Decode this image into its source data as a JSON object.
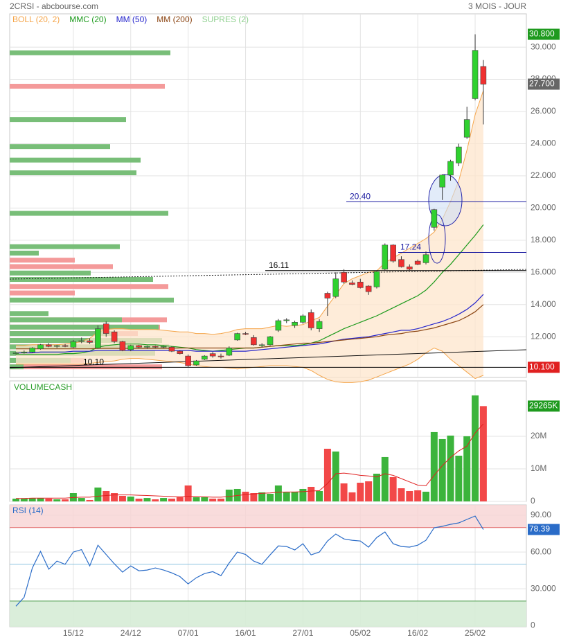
{
  "header": {
    "title": "2CRSI - abcbourse.com",
    "period": "3 MOIS - JOUR"
  },
  "chart_data": [
    {
      "type": "candlestick",
      "categories": [
        null,
        null,
        null,
        null,
        null,
        null,
        null,
        "15/12",
        null,
        null,
        null,
        null,
        null,
        null,
        "24/12",
        null,
        null,
        null,
        null,
        null,
        null,
        "07/01",
        null,
        null,
        null,
        null,
        null,
        null,
        "16/01",
        null,
        null,
        null,
        null,
        null,
        null,
        "27/01",
        null,
        null,
        null,
        null,
        null,
        null,
        "05/02",
        null,
        null,
        null,
        null,
        null,
        null,
        "16/02",
        null,
        null,
        null,
        null,
        null,
        null,
        "25/02",
        null
      ],
      "open": [
        10.95,
        11.0,
        11.05,
        11.25,
        11.5,
        11.4,
        11.45,
        11.35,
        11.7,
        11.75,
        11.3,
        12.8,
        12.3,
        11.7,
        11.2,
        11.45,
        11.35,
        11.4,
        11.35,
        11.35,
        11.1,
        10.8,
        10.25,
        10.6,
        10.95,
        10.8,
        10.85,
        11.8,
        12.2,
        11.95,
        11.45,
        11.5,
        12.4,
        13.0,
        12.7,
        12.9,
        13.5,
        12.5,
        14.7,
        14.5,
        16.0,
        15.35,
        15.4,
        15.15,
        15.1,
        16.2,
        17.7,
        16.8,
        16.35,
        16.7,
        16.6,
        18.8,
        21.3,
        22.05,
        22.8,
        24.4,
        26.8,
        28.8
      ],
      "high": [
        11.05,
        11.15,
        11.35,
        11.55,
        11.6,
        11.5,
        11.55,
        11.8,
        11.95,
        11.9,
        12.7,
        12.95,
        12.4,
        11.75,
        11.5,
        11.5,
        11.45,
        11.45,
        11.45,
        11.4,
        11.15,
        10.9,
        10.55,
        10.85,
        11.05,
        10.95,
        11.4,
        12.25,
        12.3,
        12.1,
        11.6,
        12.05,
        13.1,
        13.15,
        13.0,
        13.4,
        13.7,
        13.1,
        14.8,
        16.0,
        16.2,
        15.5,
        15.6,
        15.2,
        16.1,
        17.8,
        17.75,
        17.0,
        16.5,
        16.8,
        17.3,
        19.95,
        22.1,
        23.0,
        24.0,
        26.3,
        30.8,
        29.2
      ],
      "low": [
        10.9,
        10.95,
        11.0,
        11.2,
        11.35,
        11.3,
        11.35,
        11.3,
        11.6,
        11.55,
        11.25,
        12.0,
        11.6,
        11.1,
        11.1,
        11.3,
        11.25,
        11.3,
        11.3,
        11.05,
        10.9,
        10.1,
        10.2,
        10.55,
        10.7,
        10.65,
        10.8,
        11.75,
        12.1,
        11.45,
        11.35,
        11.45,
        12.3,
        12.85,
        12.55,
        12.8,
        12.4,
        12.3,
        13.3,
        14.4,
        15.3,
        15.2,
        15.0,
        14.6,
        15.0,
        16.1,
        16.6,
        16.3,
        16.1,
        16.45,
        16.5,
        18.6,
        20.5,
        21.7,
        22.6,
        24.3,
        26.7,
        25.2
      ],
      "close": [
        11.0,
        11.05,
        11.3,
        11.5,
        11.4,
        11.45,
        11.4,
        11.7,
        11.75,
        11.65,
        12.5,
        12.2,
        11.7,
        11.15,
        11.45,
        11.35,
        11.4,
        11.35,
        11.4,
        11.1,
        10.95,
        10.2,
        10.5,
        10.8,
        10.8,
        10.75,
        11.3,
        12.2,
        12.15,
        11.5,
        11.5,
        12.0,
        13.0,
        13.05,
        12.9,
        13.3,
        12.55,
        12.95,
        14.4,
        15.6,
        15.4,
        15.25,
        15.05,
        14.8,
        16.05,
        17.7,
        16.7,
        16.35,
        16.2,
        16.5,
        17.1,
        19.9,
        22.05,
        22.9,
        23.8,
        25.5,
        29.8,
        27.7
      ],
      "up_color": "#2fd12f",
      "down_color": "#f03030",
      "ylim": [
        9.47,
        32.07
      ],
      "yticks": [
        {
          "value": 12,
          "label": "12.000"
        },
        {
          "value": 14,
          "label": "14.000"
        },
        {
          "value": 16,
          "label": "16.000"
        },
        {
          "value": 18,
          "label": "18.000"
        },
        {
          "value": 20,
          "label": "20.000"
        },
        {
          "value": 22,
          "label": "22.000"
        },
        {
          "value": 24,
          "label": "24.000"
        },
        {
          "value": 26,
          "label": "26.000"
        },
        {
          "value": 28,
          "label": "28.000"
        },
        {
          "value": 30,
          "label": "30.000"
        }
      ],
      "grid": true,
      "series": [
        {
          "name": "BOLL (20, 2)",
          "color": "#f5a54a",
          "upper": [
            11.45,
            11.45,
            11.5,
            11.5,
            11.5,
            11.5,
            11.55,
            11.6,
            11.7,
            11.9,
            12.3,
            12.45,
            12.5,
            12.5,
            12.45,
            12.45,
            12.45,
            12.45,
            12.4,
            12.35,
            12.3,
            12.3,
            12.2,
            12.2,
            12.15,
            12.2,
            12.3,
            12.45,
            12.5,
            12.5,
            12.5,
            12.6,
            12.7,
            12.65,
            12.7,
            12.75,
            13.0,
            13.2,
            13.9,
            14.6,
            15.3,
            15.6,
            15.8,
            16.0,
            16.1,
            16.6,
            16.9,
            17.2,
            17.5,
            17.8,
            18.1,
            18.5,
            19.3,
            20.4,
            21.7,
            23.6,
            25.8,
            27.3
          ],
          "lower": [
            10.3,
            10.3,
            10.3,
            10.3,
            10.3,
            10.3,
            10.3,
            10.3,
            10.3,
            10.35,
            10.4,
            10.45,
            10.5,
            10.6,
            10.65,
            10.65,
            10.6,
            10.55,
            10.5,
            10.45,
            10.4,
            10.3,
            10.2,
            10.15,
            10.1,
            10.1,
            10.05,
            10.0,
            10.05,
            10.1,
            10.15,
            10.2,
            10.2,
            10.2,
            10.15,
            10.1,
            9.9,
            9.6,
            9.35,
            9.2,
            9.15,
            9.15,
            9.2,
            9.3,
            9.5,
            9.7,
            9.9,
            10.1,
            10.3,
            10.6,
            11.0,
            11.3,
            11.1,
            10.6,
            10.2,
            9.8,
            9.4,
            9.6
          ]
        },
        {
          "name": "MMC (20)",
          "color": "#1c9a1c",
          "values": [
            10.9,
            10.9,
            10.9,
            10.9,
            10.9,
            10.9,
            10.95,
            10.95,
            11.0,
            11.1,
            11.35,
            11.45,
            11.5,
            11.55,
            11.55,
            11.55,
            11.5,
            11.5,
            11.45,
            11.4,
            11.35,
            11.3,
            11.2,
            11.15,
            11.1,
            11.15,
            11.2,
            11.25,
            11.3,
            11.3,
            11.35,
            11.4,
            11.45,
            11.45,
            11.45,
            11.5,
            11.6,
            11.75,
            12.0,
            12.25,
            12.5,
            12.7,
            12.9,
            13.1,
            13.3,
            13.55,
            13.8,
            14.05,
            14.3,
            14.55,
            14.9,
            15.4,
            16.0,
            16.5,
            17.1,
            17.7,
            18.3,
            18.96
          ]
        },
        {
          "name": "MM (50)",
          "color": "#2424cc",
          "values": [
            11.0,
            11.0,
            11.0,
            11.05,
            11.05,
            11.05,
            11.05,
            11.1,
            11.1,
            11.1,
            11.15,
            11.15,
            11.15,
            11.15,
            11.15,
            11.15,
            11.15,
            11.15,
            11.15,
            11.15,
            11.15,
            11.15,
            11.1,
            11.1,
            11.1,
            11.1,
            11.1,
            11.1,
            11.1,
            11.15,
            11.2,
            11.25,
            11.3,
            11.35,
            11.4,
            11.45,
            11.5,
            11.55,
            11.65,
            11.75,
            11.85,
            11.9,
            11.95,
            12.0,
            12.1,
            12.2,
            12.3,
            12.4,
            12.4,
            12.5,
            12.65,
            12.8,
            12.95,
            13.15,
            13.4,
            13.7,
            14.1,
            14.63
          ]
        },
        {
          "name": "MM (200)",
          "color": "#8b4513",
          "values": [
            11.25,
            11.25,
            11.25,
            11.25,
            11.25,
            11.25,
            11.25,
            11.25,
            11.25,
            11.25,
            11.28,
            11.28,
            11.28,
            11.28,
            11.28,
            11.28,
            11.28,
            11.28,
            11.28,
            11.28,
            11.3,
            11.3,
            11.3,
            11.3,
            11.3,
            11.3,
            11.3,
            11.3,
            11.3,
            11.3,
            11.35,
            11.4,
            11.45,
            11.5,
            11.55,
            11.6,
            11.6,
            11.65,
            11.7,
            11.75,
            11.8,
            11.85,
            11.9,
            11.95,
            12.0,
            12.1,
            12.15,
            12.2,
            12.3,
            12.35,
            12.45,
            12.55,
            12.7,
            12.85,
            13.0,
            13.25,
            13.55,
            14.0
          ]
        },
        {
          "name": "SUPRES (2)",
          "color": "#8fd08f",
          "levels": [
            {
              "value": 20.4,
              "label": "20.40"
            },
            {
              "value": 17.24,
              "label": "17.24"
            },
            {
              "value": 16.11,
              "label": "16.11"
            },
            {
              "value": 10.1,
              "label": "10.10"
            }
          ]
        }
      ],
      "tags": [
        {
          "value": 30.8,
          "label": "30.800",
          "color": "#1e9a1e"
        },
        {
          "value": 27.7,
          "label": "27.700",
          "color": "#666666"
        },
        {
          "value": 10.1,
          "label": "10.100",
          "color": "#e02020"
        }
      ],
      "volume_profile": {
        "prices": [
          29.65,
          27.57,
          25.5,
          23.82,
          22.98,
          22.19,
          19.67,
          17.6,
          17.2,
          16.76,
          16.36,
          15.96,
          15.56,
          15.12,
          14.72,
          14.28,
          13.44,
          13.05,
          12.6,
          12.2,
          11.77,
          11.37,
          10.97,
          10.53,
          10.13
        ],
        "buy": [
          232,
          0,
          168,
          145,
          189,
          183,
          229,
          159,
          42,
          0,
          0,
          117,
          207,
          0,
          0,
          237,
          56,
          162,
          215,
          150,
          220,
          230,
          210,
          88,
          20
        ],
        "sell": [
          0,
          224,
          0,
          0,
          0,
          0,
          0,
          0,
          0,
          94,
          149,
          0,
          0,
          229,
          94,
          0,
          0,
          227,
          217,
          185,
          190,
          228,
          200,
          108,
          220
        ],
        "buy_color": "#78be78",
        "sell_color": "#f49a9a"
      }
    },
    {
      "type": "bar",
      "title": "VOLUMECASH",
      "values": [
        850000,
        850000,
        1050000,
        1050000,
        850000,
        640000,
        640000,
        2550000,
        1050000,
        430000,
        4260000,
        3190000,
        2550000,
        1700000,
        1490000,
        850000,
        1050000,
        640000,
        1050000,
        850000,
        1280000,
        4890000,
        1280000,
        1280000,
        850000,
        850000,
        3620000,
        3830000,
        2980000,
        2550000,
        2770000,
        2340000,
        4890000,
        2770000,
        2980000,
        3830000,
        4470000,
        3190000,
        16170000,
        15320000,
        5530000,
        2770000,
        5740000,
        6170000,
        8510000,
        13620000,
        7450000,
        4040000,
        3190000,
        3400000,
        2980000,
        21280000,
        19150000,
        20210000,
        14040000,
        20000000,
        32550000,
        29265000
      ],
      "average": [
        900000,
        900000,
        1000000,
        1000000,
        1000000,
        1000000,
        1000000,
        1200000,
        1300000,
        1300000,
        1600000,
        1800000,
        2000000,
        2000000,
        2000000,
        1900000,
        1800000,
        1700000,
        1600000,
        1500000,
        1400000,
        1600000,
        1500000,
        1400000,
        1300000,
        1300000,
        1500000,
        1800000,
        2100000,
        2300000,
        2500000,
        2600000,
        2800000,
        2900000,
        2900000,
        3000000,
        3200000,
        3300000,
        5500000,
        8500000,
        8700000,
        8400000,
        8000000,
        7800000,
        7500000,
        8500000,
        8000000,
        7000000,
        6000000,
        5000000,
        4800000,
        8000000,
        11000000,
        13500000,
        15500000,
        17000000,
        21000000,
        23800000
      ],
      "up_color": "#3cb43c",
      "down_color": "#f24848",
      "average_color": "#e02020",
      "ylim": [
        0,
        37000000
      ],
      "yticks": [
        0,
        {
          "value": 10000000,
          "label": "10M"
        },
        {
          "value": 20000000,
          "label": "20M"
        }
      ],
      "grid": true,
      "tags": [
        {
          "value": 29265000,
          "label": "29265K",
          "color": "#1e9a1e"
        }
      ]
    },
    {
      "type": "line",
      "series": [
        {
          "name": "RSI (14)",
          "color": "#2a6cc8",
          "values": [
            15.8,
            23,
            47,
            60.5,
            46,
            52.6,
            50,
            60,
            62,
            48.7,
            65.6,
            58,
            50.4,
            43.6,
            48.7,
            44.7,
            45.3,
            47,
            45.3,
            43,
            40,
            34,
            39,
            42.4,
            44,
            40.7,
            51,
            60,
            58,
            52.6,
            50,
            57.7,
            65,
            64.5,
            61.7,
            66.8,
            57.7,
            60,
            69,
            74.7,
            70.7,
            69.6,
            69,
            64,
            71.9,
            76.4,
            66.8,
            64.5,
            64,
            65.6,
            69.6,
            79.8,
            81,
            82.6,
            83.8,
            86.6,
            89.4,
            78.39
          ]
        }
      ],
      "ylim": [
        -1,
        98.5
      ],
      "yticks": [
        0,
        {
          "value": 30,
          "label": "30.000"
        },
        {
          "value": 60,
          "label": "60.00"
        },
        {
          "value": 90,
          "label": "90.00"
        }
      ],
      "grid": true,
      "overbought": 80,
      "oversold": 20,
      "midline": 50,
      "tags": [
        {
          "value": 78.39,
          "color": "#2a6cc8"
        }
      ]
    }
  ]
}
